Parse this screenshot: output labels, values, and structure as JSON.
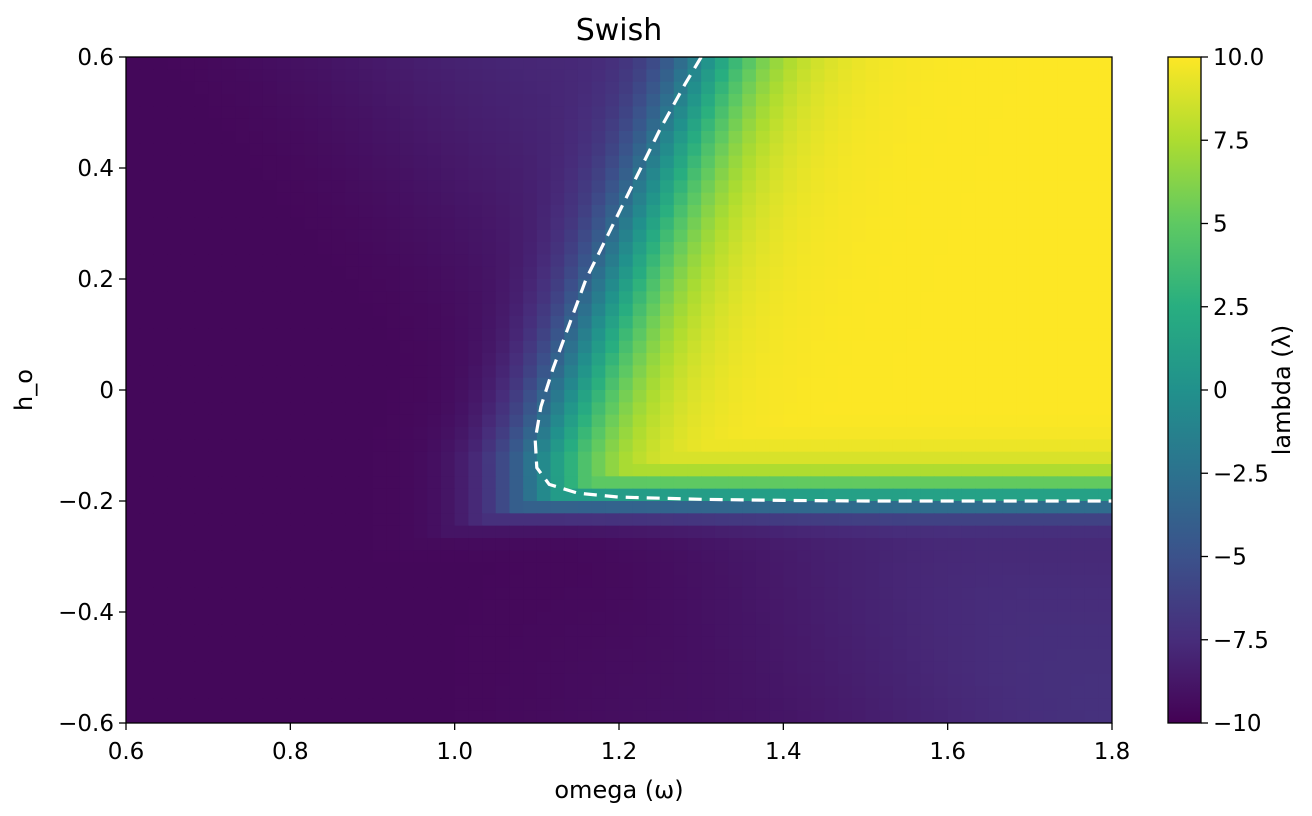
{
  "chart_data": {
    "type": "heatmap",
    "title": "Swish",
    "xlabel": "omega (ω)",
    "ylabel": "h_o",
    "xlim": [
      0.6,
      1.8
    ],
    "ylim": [
      -0.6,
      0.6
    ],
    "xticks": [
      0.6,
      0.8,
      1.0,
      1.2,
      1.4,
      1.6,
      1.8
    ],
    "xtick_labels": [
      "0.6",
      "0.8",
      "1.0",
      "1.2",
      "1.4",
      "1.6",
      "1.8"
    ],
    "yticks": [
      0.6,
      0.4,
      0.2,
      0,
      -0.2,
      -0.4,
      -0.6
    ],
    "ytick_labels": [
      "0.6",
      "0.4",
      "0.2",
      "0",
      "−0.2",
      "−0.4",
      "−0.6"
    ],
    "colorbar": {
      "label": "lambda (λ)",
      "colormap": "viridis",
      "range": [
        -10,
        10
      ],
      "ticks": [
        10,
        7.5,
        5,
        2.5,
        0,
        -2.5,
        -5,
        -7.5,
        -10
      ],
      "tick_labels": [
        "10.0",
        "7.5",
        "5",
        "2.5",
        "0",
        "−2.5",
        "−5",
        "−7.5",
        "−10"
      ]
    },
    "grid": false,
    "contour": {
      "level": 0,
      "style": "dashed",
      "color": "#ffffff",
      "points": [
        [
          1.3,
          0.6
        ],
        [
          1.28,
          0.55
        ],
        [
          1.25,
          0.47
        ],
        [
          1.22,
          0.38
        ],
        [
          1.19,
          0.29
        ],
        [
          1.16,
          0.2
        ],
        [
          1.14,
          0.12
        ],
        [
          1.12,
          0.04
        ],
        [
          1.105,
          -0.03
        ],
        [
          1.098,
          -0.09
        ],
        [
          1.1,
          -0.14
        ],
        [
          1.115,
          -0.17
        ],
        [
          1.15,
          -0.186
        ],
        [
          1.2,
          -0.193
        ],
        [
          1.3,
          -0.197
        ],
        [
          1.4,
          -0.199
        ],
        [
          1.5,
          -0.2
        ],
        [
          1.6,
          -0.2
        ],
        [
          1.7,
          -0.2
        ],
        [
          1.8,
          -0.2
        ]
      ]
    }
  }
}
